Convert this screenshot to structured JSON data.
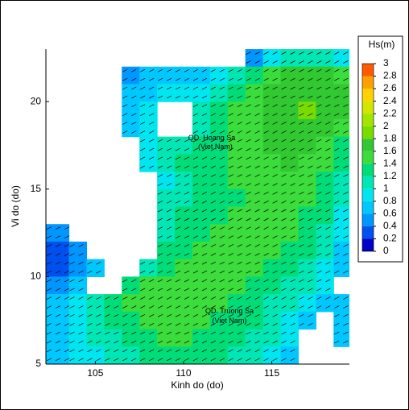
{
  "chart_data": {
    "type": "heatmap",
    "x_label": "Kinh do (do)",
    "y_label": "Vi do (do)",
    "xlim": [
      102.2,
      119.4
    ],
    "ylim": [
      5,
      23
    ],
    "xticks": [
      105,
      110,
      115
    ],
    "yticks": [
      5,
      10,
      15,
      20
    ],
    "x": [
      103,
      104,
      105,
      106,
      107,
      108,
      109,
      110,
      111,
      112,
      113,
      114,
      115,
      116,
      117,
      118,
      119
    ],
    "y": [
      22.5,
      21.5,
      20.5,
      19.5,
      18.5,
      17.5,
      16.5,
      15.5,
      14.5,
      13.5,
      12.5,
      11.5,
      10.5,
      9.5,
      8.5,
      7.5,
      6.5,
      5.5
    ],
    "values": [
      [
        null,
        null,
        null,
        null,
        null,
        null,
        null,
        null,
        null,
        null,
        null,
        0.5,
        0.8,
        1.0,
        1.0,
        1.0,
        0.9
      ],
      [
        null,
        null,
        null,
        null,
        0.5,
        0.6,
        0.7,
        0.6,
        0.7,
        0.9,
        1.1,
        1.3,
        1.5,
        1.6,
        1.6,
        1.6,
        1.5
      ],
      [
        null,
        null,
        null,
        null,
        0.6,
        0.7,
        0.8,
        0.8,
        0.9,
        1.1,
        1.3,
        1.5,
        1.6,
        1.7,
        1.7,
        1.7,
        1.6
      ],
      [
        null,
        null,
        null,
        null,
        0.6,
        0.8,
        null,
        null,
        1.0,
        1.2,
        1.4,
        1.5,
        1.6,
        1.7,
        1.8,
        1.7,
        1.6
      ],
      [
        null,
        null,
        null,
        null,
        0.6,
        0.8,
        null,
        null,
        1.1,
        1.3,
        1.4,
        1.5,
        1.6,
        1.6,
        1.7,
        1.6,
        1.5
      ],
      [
        null,
        null,
        null,
        null,
        null,
        0.8,
        1.0,
        1.1,
        1.2,
        1.3,
        1.4,
        1.5,
        1.6,
        1.6,
        1.6,
        1.5,
        1.3
      ],
      [
        null,
        null,
        null,
        null,
        null,
        0.8,
        1.0,
        1.2,
        1.3,
        1.3,
        1.4,
        1.5,
        1.5,
        1.6,
        1.5,
        1.4,
        1.2
      ],
      [
        null,
        null,
        null,
        null,
        null,
        null,
        0.9,
        1.1,
        1.2,
        1.3,
        1.4,
        1.4,
        1.5,
        1.5,
        1.5,
        1.3,
        1.1
      ],
      [
        null,
        null,
        null,
        null,
        null,
        null,
        1.0,
        1.1,
        1.2,
        1.3,
        1.3,
        1.4,
        1.5,
        1.5,
        1.4,
        1.3,
        1.0
      ],
      [
        null,
        null,
        null,
        null,
        null,
        null,
        1.0,
        1.2,
        1.3,
        1.3,
        1.4,
        1.4,
        1.5,
        1.4,
        1.3,
        1.2,
        0.9
      ],
      [
        0.4,
        null,
        null,
        null,
        null,
        null,
        1.1,
        1.3,
        1.3,
        1.4,
        1.4,
        1.5,
        1.5,
        1.4,
        1.3,
        1.1,
        0.8
      ],
      [
        0.3,
        0.5,
        null,
        null,
        null,
        null,
        1.2,
        1.3,
        1.4,
        1.4,
        1.5,
        1.5,
        1.4,
        1.3,
        1.2,
        1.0,
        0.7
      ],
      [
        0.3,
        0.5,
        0.6,
        null,
        null,
        1.1,
        1.3,
        1.4,
        1.4,
        1.5,
        1.5,
        1.4,
        1.3,
        1.2,
        1.1,
        0.9,
        0.6
      ],
      [
        0.5,
        0.7,
        null,
        null,
        1.2,
        1.4,
        1.5,
        1.5,
        1.5,
        1.5,
        1.4,
        1.3,
        1.2,
        1.1,
        1.0,
        0.8,
        null
      ],
      [
        0.7,
        0.8,
        1.0,
        1.2,
        1.4,
        1.5,
        1.5,
        1.5,
        1.4,
        1.4,
        1.3,
        1.2,
        1.1,
        1.0,
        0.9,
        0.7,
        0.6
      ],
      [
        0.7,
        0.8,
        1.0,
        1.2,
        1.3,
        1.4,
        1.4,
        1.4,
        1.4,
        1.3,
        1.3,
        1.2,
        1.1,
        0.9,
        0.7,
        null,
        0.6
      ],
      [
        0.7,
        0.8,
        1.0,
        1.1,
        1.2,
        1.3,
        1.4,
        1.4,
        1.3,
        1.3,
        1.2,
        1.1,
        1.0,
        0.8,
        null,
        null,
        0.6
      ],
      [
        0.6,
        0.8,
        0.9,
        1.0,
        1.1,
        1.2,
        1.3,
        1.3,
        1.3,
        1.2,
        1.1,
        1.0,
        0.8,
        0.7,
        null,
        null,
        null
      ]
    ],
    "colorbar": {
      "title": "Hs(m)",
      "ticks": [
        0,
        0.2,
        0.4,
        0.6,
        0.8,
        1,
        1.2,
        1.4,
        1.6,
        1.8,
        2,
        2.2,
        2.4,
        2.6,
        2.8,
        3
      ],
      "colors": [
        "#0000c8",
        "#0050f0",
        "#0096ff",
        "#00c8ff",
        "#00e6f0",
        "#00e6b4",
        "#00dc78",
        "#3cdc3c",
        "#32c832",
        "#78dc00",
        "#a0e600",
        "#d2e600",
        "#ffd200",
        "#ffa000",
        "#ff5a00"
      ]
    },
    "annotations": [
      {
        "text": "QD. Hoang Sa",
        "x": 111.6,
        "y": 17.9
      },
      {
        "text": "(Viet Nam)",
        "x": 111.8,
        "y": 17.4
      },
      {
        "text": "QD. Truong Sa",
        "x": 112.6,
        "y": 8.0
      },
      {
        "text": "(Viet Nam)",
        "x": 112.6,
        "y": 7.45
      }
    ]
  }
}
